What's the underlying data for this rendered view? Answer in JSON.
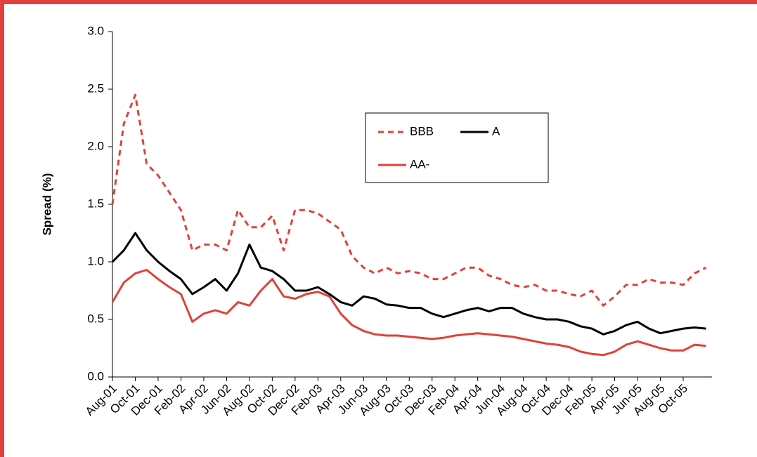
{
  "chart_data": {
    "type": "line",
    "y_label": "Spread (%)",
    "categories": [
      "Aug-01",
      null,
      "Oct-01",
      null,
      "Dec-01",
      null,
      "Feb-02",
      null,
      "Apr-02",
      null,
      "Jun-02",
      null,
      "Aug-02",
      null,
      "Oct-02",
      null,
      "Dec-02",
      null,
      "Feb-03",
      null,
      "Apr-03",
      null,
      "Jun-03",
      null,
      "Aug-03",
      null,
      "Oct-03",
      null,
      "Dec-03",
      null,
      "Feb-04",
      null,
      "Apr-04",
      null,
      "Jun-04",
      null,
      "Aug-04",
      null,
      "Oct-04",
      null,
      "Dec-04",
      null,
      "Feb-05",
      null,
      "Apr-05",
      null,
      "Jun-05",
      null,
      "Aug-05",
      null,
      "Oct-05",
      null,
      null
    ],
    "series": [
      {
        "name": "BBB",
        "color": "#e0413a",
        "style": "dashed",
        "values": [
          1.5,
          2.2,
          2.45,
          1.85,
          1.75,
          1.6,
          1.45,
          1.1,
          1.15,
          1.15,
          1.1,
          1.45,
          1.3,
          1.3,
          1.4,
          1.1,
          1.45,
          1.45,
          1.42,
          1.35,
          1.28,
          1.05,
          0.95,
          0.9,
          0.95,
          0.9,
          0.92,
          0.9,
          0.85,
          0.85,
          0.9,
          0.95,
          0.95,
          0.88,
          0.85,
          0.8,
          0.78,
          0.8,
          0.75,
          0.75,
          0.72,
          0.7,
          0.75,
          0.62,
          0.7,
          0.8,
          0.8,
          0.85,
          0.82,
          0.82,
          0.8,
          0.9,
          0.95
        ]
      },
      {
        "name": "A",
        "color": "#000000",
        "style": "solid",
        "values": [
          1.0,
          1.1,
          1.25,
          1.1,
          1.0,
          0.92,
          0.85,
          0.72,
          0.78,
          0.85,
          0.75,
          0.9,
          1.15,
          0.95,
          0.92,
          0.85,
          0.75,
          0.75,
          0.78,
          0.72,
          0.65,
          0.62,
          0.7,
          0.68,
          0.63,
          0.62,
          0.6,
          0.6,
          0.55,
          0.52,
          0.55,
          0.58,
          0.6,
          0.57,
          0.6,
          0.6,
          0.55,
          0.52,
          0.5,
          0.5,
          0.48,
          0.44,
          0.42,
          0.37,
          0.4,
          0.45,
          0.48,
          0.42,
          0.38,
          0.4,
          0.42,
          0.43,
          0.42
        ]
      },
      {
        "name": "AA-",
        "color": "#e0413a",
        "style": "solid",
        "values": [
          0.65,
          0.82,
          0.9,
          0.93,
          0.85,
          0.78,
          0.72,
          0.48,
          0.55,
          0.58,
          0.55,
          0.65,
          0.62,
          0.75,
          0.85,
          0.7,
          0.68,
          0.72,
          0.74,
          0.7,
          0.55,
          0.45,
          0.4,
          0.37,
          0.36,
          0.36,
          0.35,
          0.34,
          0.33,
          0.34,
          0.36,
          0.37,
          0.38,
          0.37,
          0.36,
          0.35,
          0.33,
          0.31,
          0.29,
          0.28,
          0.26,
          0.22,
          0.2,
          0.19,
          0.22,
          0.28,
          0.31,
          0.28,
          0.25,
          0.23,
          0.23,
          0.28,
          0.27
        ]
      }
    ],
    "ylim": [
      0,
      3
    ],
    "yticks": [
      {
        "value": 0,
        "label": "0.0"
      },
      0.5,
      {
        "value": 1,
        "label": "1.0"
      },
      1.5,
      {
        "value": 2,
        "label": "2.0"
      },
      2.5,
      {
        "value": 3,
        "label": "3.0"
      }
    ]
  }
}
